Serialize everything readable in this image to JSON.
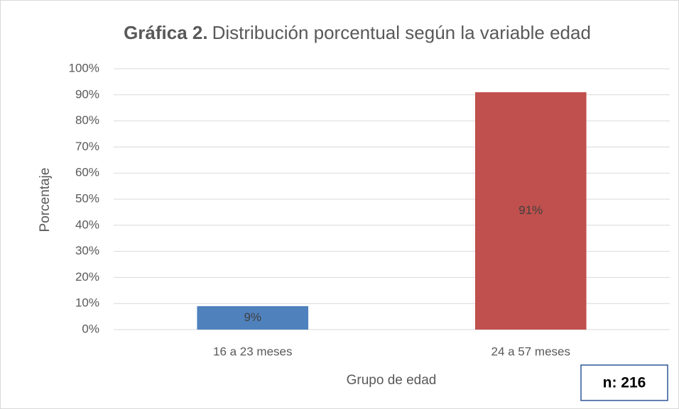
{
  "chart_data": {
    "type": "bar",
    "title_prefix": "Gráfica 2.",
    "title": "Distribución porcentual según la variable edad",
    "categories": [
      "16 a 23 meses",
      "24 a 57 meses"
    ],
    "values": [
      9,
      91
    ],
    "value_labels": [
      "9%",
      "91%"
    ],
    "colors": [
      "#4f81bd",
      "#c0504d"
    ],
    "xlabel": "Grupo de edad",
    "ylabel": "Porcentaje",
    "annotation": "n: 216",
    "ylim": [
      0,
      100
    ],
    "yticks": [
      {
        "value": 0,
        "label": "0%"
      },
      {
        "value": 10,
        "label": "10%"
      },
      {
        "value": 20,
        "label": "20%"
      },
      {
        "value": 30,
        "label": "30%"
      },
      {
        "value": 40,
        "label": "40%"
      },
      {
        "value": 50,
        "label": "50%"
      },
      {
        "value": 60,
        "label": "60%"
      },
      {
        "value": 70,
        "label": "70%"
      },
      {
        "value": 80,
        "label": "80%"
      },
      {
        "value": 90,
        "label": "90%"
      },
      {
        "value": 100,
        "label": "100%"
      }
    ],
    "grid": true
  }
}
